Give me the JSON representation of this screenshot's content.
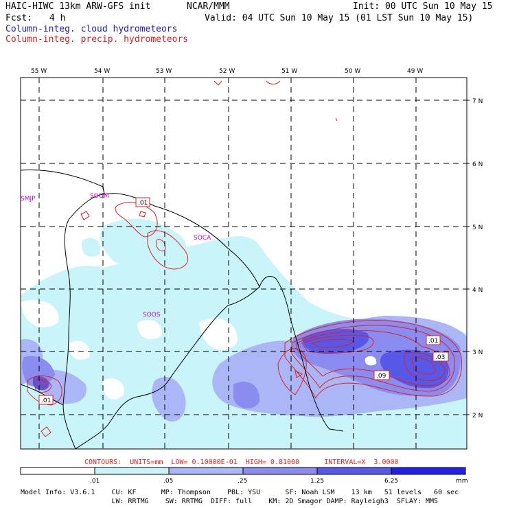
{
  "header": {
    "model": "HAIC-HIWC 13km ARW-GFS init",
    "center": "NCAR/MMM",
    "init": "Init: 00 UTC Sun 10 May 15",
    "fcst_label": "Fcst:",
    "fcst_value": "4 h",
    "valid": "Valid: 04 UTC Sun 10 May 15 (01 LST Sun 10 May 15)",
    "field1": "Column-integ. cloud hydrometeors",
    "field2": "Column-integ. precip. hydrometeors",
    "field1_color": "#1a1acc",
    "field2_color": "#e02020"
  },
  "map": {
    "lon_labels": [
      "55 W",
      "54 W",
      "53 W",
      "52 W",
      "51 W",
      "50 W",
      "49 W"
    ],
    "lat_labels": [
      "7 N",
      "6 N",
      "5 N",
      "4 N",
      "3 N",
      "2 N"
    ],
    "stations": [
      "SMJP",
      "SOOM",
      "SOCA",
      "SOOS"
    ],
    "contour_labels": [
      ".01",
      ".01",
      ".01",
      ".03",
      ".09"
    ]
  },
  "contours_info": "CONTOURS:  UNITS=mm  LOW= 0.10000E-01  HIGH= 0.81000      INTERVAL=X  3.0000",
  "colorbar": {
    "ticks": [
      ".01",
      ".05",
      ".25",
      "1.25",
      "6.25"
    ],
    "unit": "mm",
    "colors": [
      "#ffffff",
      "#c8f4fa",
      "#aab6f6",
      "#8a8cf0",
      "#5858e8",
      "#2020e6"
    ]
  },
  "footer": {
    "line1": "Model Info: V3.6.1    CU: KF      MP: Thompson    PBL: YSU      SF: Noah LSM    13 km   51 levels   60 sec",
    "line2": "                      LW: RRTMG    SW: RRTMG  DIFF: full    KM: 2D Smagor DAMP: Rayleigh3  SFLAY: MM5"
  }
}
